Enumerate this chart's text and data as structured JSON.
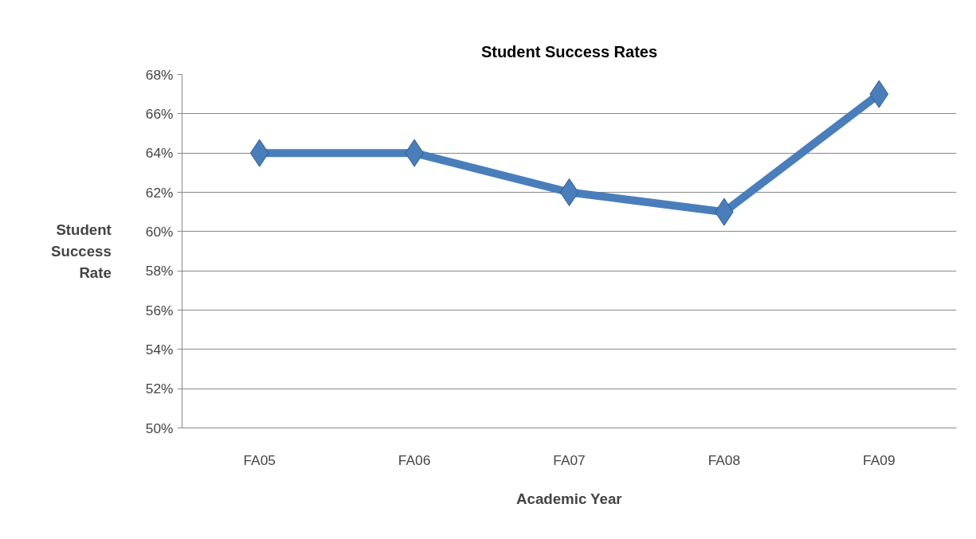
{
  "chart_data": {
    "type": "line",
    "title": "Student Success Rates",
    "xlabel": "Academic Year",
    "ylabel": "Student Success Rate",
    "categories": [
      "FA05",
      "FA06",
      "FA07",
      "FA08",
      "FA09"
    ],
    "series": [
      {
        "color": "#4a7ebb",
        "values": [
          64,
          64,
          62,
          61,
          67
        ]
      }
    ],
    "ylim": [
      50,
      68
    ],
    "yticks": [
      {
        "value": 50,
        "label": "50%"
      },
      {
        "value": 52,
        "label": "52%"
      },
      {
        "value": 54,
        "label": "54%"
      },
      {
        "value": 56,
        "label": "56%"
      },
      {
        "value": 58,
        "label": "58%"
      },
      {
        "value": 60,
        "label": "60%"
      },
      {
        "value": 62,
        "label": "62%"
      },
      {
        "value": 64,
        "label": "64%"
      },
      {
        "value": 66,
        "label": "66%"
      },
      {
        "value": 68,
        "label": "68%"
      }
    ],
    "grid": "y",
    "marker": "diamond",
    "line_style": "solid"
  }
}
